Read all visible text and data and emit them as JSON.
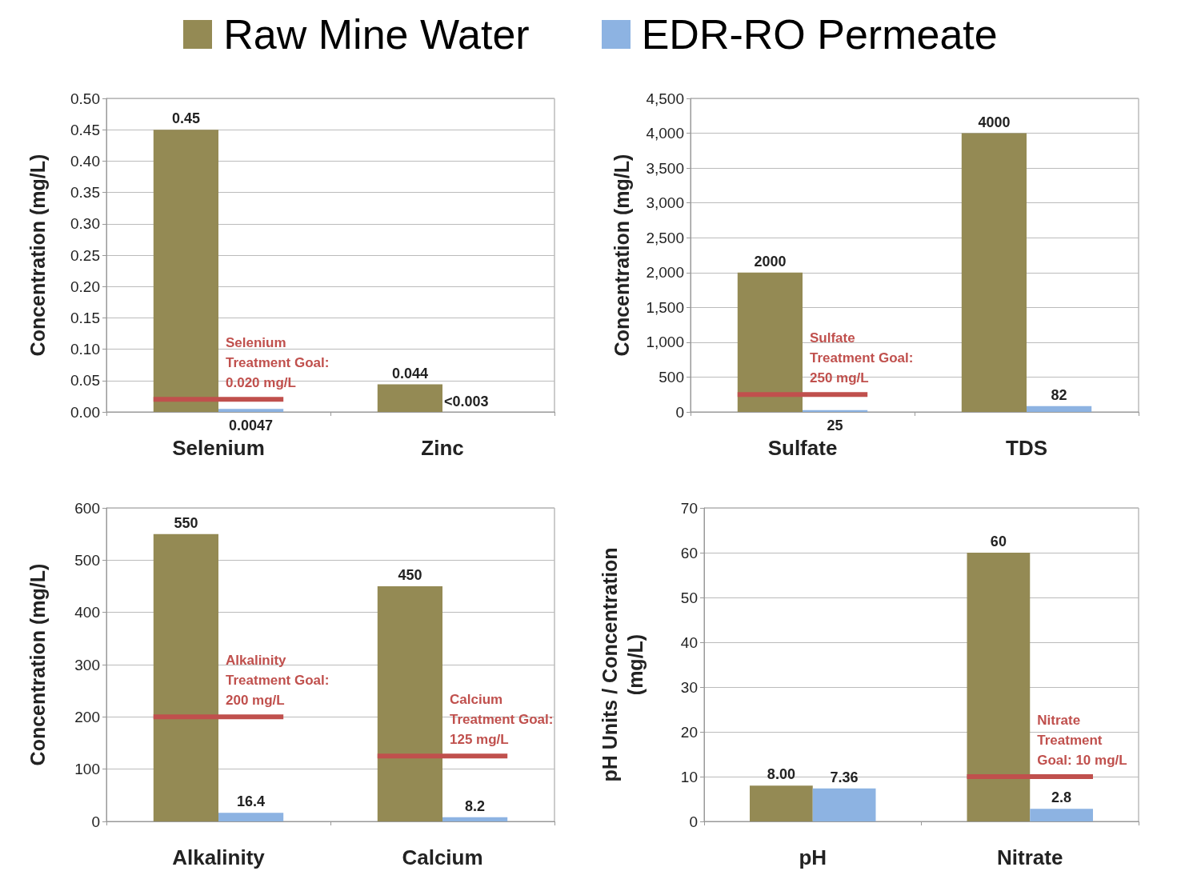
{
  "chart_data": [
    {
      "type": "bar",
      "categories": [
        "Selenium",
        "Zinc"
      ],
      "ylabel": "Concentration (mg/L)",
      "ylim": [
        0,
        0.5
      ],
      "yticks": [
        {
          "value": 0,
          "label": "0.00"
        },
        {
          "value": 0.05,
          "label": "0.05"
        },
        {
          "value": 0.1,
          "label": "0.10"
        },
        {
          "value": 0.15,
          "label": "0.15"
        },
        {
          "value": 0.2,
          "label": "0.20"
        },
        {
          "value": 0.25,
          "label": "0.25"
        },
        {
          "value": 0.3,
          "label": "0.30"
        },
        {
          "value": 0.35,
          "label": "0.35"
        },
        {
          "value": 0.4,
          "label": "0.40"
        },
        {
          "value": 0.45,
          "label": "0.45"
        },
        {
          "value": 0.5,
          "label": "0.50"
        }
      ],
      "grid": "y",
      "legend": "top",
      "series": [
        {
          "name": "Raw Mine Water",
          "color": "#948a54",
          "values": [
            0.45,
            0.044
          ],
          "value_labels": [
            "0.45",
            "0.044"
          ]
        },
        {
          "name": "EDR-RO Permeate",
          "color": "#8db3e2",
          "values": [
            0.0047,
            null
          ],
          "value_labels": [
            "0.0047",
            "<0.003"
          ]
        }
      ],
      "annotations": [
        {
          "text": "Selenium\nTreatment Goal:\n0.020 mg/L",
          "x": "Selenium",
          "y": 0.02
        }
      ]
    },
    {
      "type": "bar",
      "categories": [
        "Sulfate",
        "TDS"
      ],
      "ylabel": "Concentration (mg/L)",
      "ylim": [
        0,
        4500
      ],
      "yticks": [
        0,
        500,
        {
          "value": 1000,
          "label": "1,000"
        },
        {
          "value": 1500,
          "label": "1,500"
        },
        {
          "value": 2000,
          "label": "2,000"
        },
        {
          "value": 2500,
          "label": "2,500"
        },
        {
          "value": 3000,
          "label": "3,000"
        },
        {
          "value": 3500,
          "label": "3,500"
        },
        {
          "value": 4000,
          "label": "4,000"
        },
        {
          "value": 4500,
          "label": "4,500"
        }
      ],
      "grid": "y",
      "series": [
        {
          "color": "#948a54",
          "values": [
            2000,
            4000
          ],
          "value_labels": [
            "2000",
            "4000"
          ]
        },
        {
          "color": "#8db3e2",
          "values": [
            25,
            82
          ],
          "value_labels": [
            "25",
            "82"
          ]
        }
      ],
      "annotations": [
        {
          "text": "Sulfate\nTreatment Goal:\n250 mg/L",
          "x": "Sulfate",
          "y": 250
        }
      ]
    },
    {
      "type": "bar",
      "categories": [
        "Alkalinity",
        "Calcium"
      ],
      "ylabel": "Concentration (mg/L)",
      "ylim": [
        0,
        600
      ],
      "yticks": [
        0,
        100,
        200,
        300,
        400,
        500,
        600
      ],
      "grid": "y",
      "series": [
        {
          "color": "#948a54",
          "values": [
            550,
            450
          ],
          "value_labels": [
            "550",
            "450"
          ]
        },
        {
          "color": "#8db3e2",
          "values": [
            16.4,
            8.2
          ],
          "value_labels": [
            "16.4",
            "8.2"
          ]
        }
      ],
      "annotations": [
        {
          "text": "Alkalinity\nTreatment Goal:\n200 mg/L",
          "x": "Alkalinity",
          "y": 200
        },
        {
          "text": "Calcium\nTreatment Goal:\n125 mg/L",
          "x": "Calcium",
          "y": 125
        }
      ]
    },
    {
      "type": "bar",
      "categories": [
        "pH",
        "Nitrate"
      ],
      "ylabel": "pH Units / Concentration\n(mg/L)",
      "ylim": [
        0,
        70
      ],
      "yticks": [
        0,
        10,
        20,
        30,
        40,
        50,
        60,
        70
      ],
      "grid": "y",
      "series": [
        {
          "color": "#948a54",
          "values": [
            8,
            60
          ],
          "value_labels": [
            "8.00",
            "60"
          ]
        },
        {
          "color": "#8db3e2",
          "values": [
            7.36,
            2.8
          ],
          "value_labels": [
            "7.36",
            "2.8"
          ]
        }
      ],
      "annotations": [
        {
          "text": "Nitrate\nTreatment\nGoal: 10 mg/L",
          "x": "Nitrate",
          "y": 10
        }
      ]
    }
  ]
}
